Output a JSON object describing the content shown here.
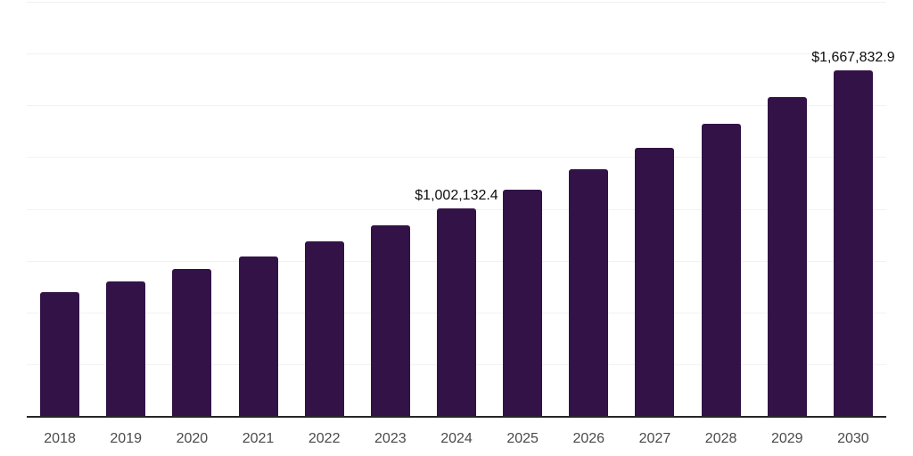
{
  "chart_data": {
    "type": "bar",
    "title": "",
    "xlabel": "",
    "ylabel": "",
    "categories": [
      "2018",
      "2019",
      "2020",
      "2021",
      "2022",
      "2023",
      "2024",
      "2025",
      "2026",
      "2027",
      "2028",
      "2029",
      "2030"
    ],
    "values": [
      600000,
      650000,
      710000,
      770000,
      842000,
      920000,
      1002132.4,
      1092000,
      1190000,
      1293000,
      1410000,
      1538000,
      1667832.9
    ],
    "data_labels": [
      "",
      "",
      "",
      "",
      "",
      "",
      "$1,002,132.4",
      "",
      "",
      "",
      "",
      "",
      "$1,667,832.9"
    ],
    "ylim": [
      0,
      2000000
    ],
    "grid_step": 250000,
    "grid": true,
    "legend": "none",
    "colors": {
      "bar": "#331347",
      "gridline": "#f2f2f2",
      "axis": "#262626",
      "tick_label": "#4a4a4a",
      "data_label": "#0d0d0d",
      "background": "#ffffff"
    }
  }
}
